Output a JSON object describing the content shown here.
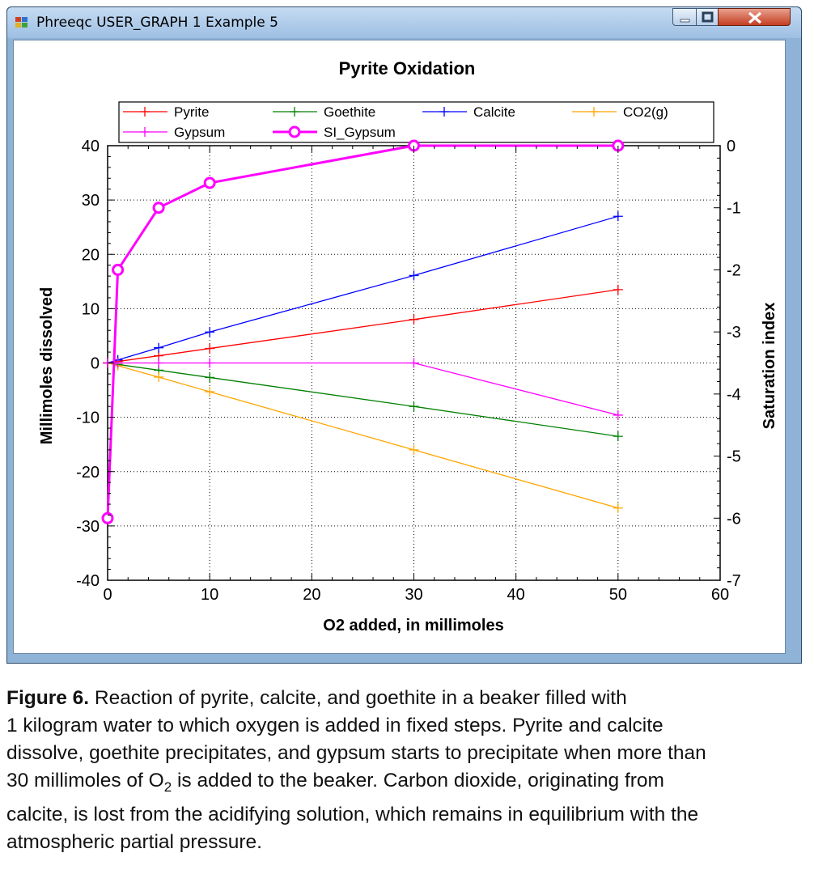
{
  "window": {
    "title": "Phreeqc USER_GRAPH 1 Example 5"
  },
  "chart_data": {
    "type": "line",
    "title": "Pyrite Oxidation",
    "xlabel": "O2 added, in millimoles",
    "ylabel": "Millimoles dissolved",
    "y2label": "Saturation index",
    "xlim": [
      0,
      60
    ],
    "ylim": [
      -40,
      40
    ],
    "y2lim": [
      -7,
      0
    ],
    "xticks": [
      0,
      10,
      20,
      30,
      40,
      50,
      60
    ],
    "yticks": [
      -40,
      -30,
      -20,
      -10,
      0,
      10,
      20,
      30,
      40
    ],
    "y2ticks": [
      -7,
      -6,
      -5,
      -4,
      -3,
      -2,
      -1,
      0
    ],
    "grid": true,
    "legend_position": "top",
    "series": [
      {
        "name": "Pyrite",
        "axis": "left",
        "color": "#ff0000",
        "marker": "plus",
        "x": [
          0,
          1,
          5,
          10,
          30,
          50
        ],
        "y": [
          0,
          0.27,
          1.33,
          2.67,
          8.0,
          13.5
        ]
      },
      {
        "name": "Goethite",
        "axis": "left",
        "color": "#008000",
        "marker": "plus",
        "x": [
          0,
          1,
          5,
          10,
          30,
          50
        ],
        "y": [
          0,
          -0.27,
          -1.33,
          -2.67,
          -8.0,
          -13.5
        ]
      },
      {
        "name": "Calcite",
        "axis": "left",
        "color": "#0000ff",
        "marker": "plus",
        "x": [
          0,
          1,
          5,
          10,
          30,
          50
        ],
        "y": [
          0,
          0.55,
          2.8,
          5.7,
          16.1,
          27.0
        ]
      },
      {
        "name": "CO2(g)",
        "axis": "left",
        "color": "#ffa500",
        "marker": "plus",
        "x": [
          0,
          1,
          5,
          10,
          30,
          50
        ],
        "y": [
          0,
          -0.5,
          -2.6,
          -5.3,
          -16.0,
          -26.7
        ]
      },
      {
        "name": "Gypsum",
        "axis": "left",
        "color": "#ff00ff",
        "marker": "plus",
        "x": [
          0,
          1,
          5,
          10,
          30,
          50
        ],
        "y": [
          0,
          0,
          0,
          0,
          0,
          -9.6
        ]
      },
      {
        "name": "SI_Gypsum",
        "axis": "right",
        "color": "#ff00ff",
        "marker": "circle",
        "thick": true,
        "x": [
          0,
          1,
          5,
          10,
          30,
          50
        ],
        "y": [
          -6.0,
          -2.0,
          -1.0,
          -0.6,
          0,
          0
        ]
      }
    ]
  },
  "caption": {
    "label": "Figure 6.",
    "line1": " Reaction of pyrite, calcite, and goethite in a beaker filled with",
    "line2": "1 kilogram water to which oxygen is added in fixed steps. Pyrite and calcite",
    "line3": "dissolve, goethite precipitates, and gypsum starts to precipitate when more than",
    "line4_pre": "30 millimoles of O",
    "line4_sub": "2",
    "line4_post": " is added to the beaker. Carbon dioxide, originating from",
    "line5": "calcite, is lost from the acidifying solution, which remains in equilibrium with the",
    "line6": "atmospheric partial pressure."
  }
}
